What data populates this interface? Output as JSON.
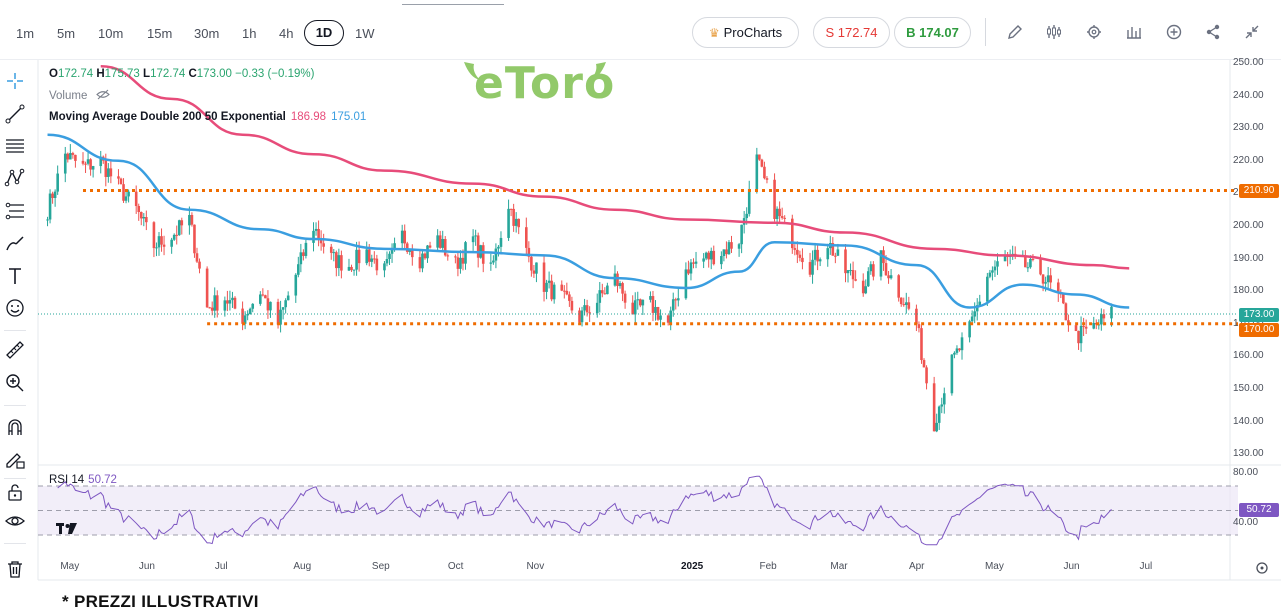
{
  "toolbar": {
    "timeframes": [
      "1m",
      "5m",
      "10m",
      "15m",
      "30m",
      "1h",
      "4h",
      "1D",
      "1W"
    ],
    "active_timeframe": "1D",
    "procharts_label": "ProCharts",
    "sell_label": "S 172.74",
    "buy_label": "B 174.07",
    "icons": [
      "draw-icon",
      "indicators-icon",
      "settings-icon",
      "chart-type-icon",
      "add-icon",
      "share-icon",
      "collapse-icon"
    ]
  },
  "left_tools": [
    "crosshair-icon",
    "trend-line-icon",
    "horizontal-lines-icon",
    "pattern-icon",
    "fib-icon",
    "brush-icon",
    "text-icon",
    "emoji-icon",
    "ruler-icon",
    "zoom-icon",
    "magnet-icon",
    "lock-draw-icon",
    "lock-icon",
    "eye-icon",
    "trash-icon"
  ],
  "legend": {
    "open_label": "O",
    "open": "172.74",
    "high_label": "H",
    "high": "175.73",
    "low_label": "L",
    "low": "172.74",
    "close_label": "C",
    "close": "173.00",
    "change": "−0.33 (−0.19%)",
    "volume_label": "Volume",
    "ma_label": "Moving Average Double 200 50 Exponential",
    "ma_value_1": "186.98",
    "ma_value_2": "175.01",
    "rsi_label": "RSI 14",
    "rsi_value": "50.72"
  },
  "watermark": "eToro",
  "colors": {
    "up": "#26a69a",
    "down": "#ef5350",
    "ma200": "#e74c7a",
    "ma50": "#3a9ee0",
    "level": "#ef6c00",
    "rsi": "#7e57c2",
    "price_badge": "#26a69a"
  },
  "chart_data": {
    "type": "candlestick",
    "y_axis_ticks": [
      "250.00",
      "240.00",
      "230.00",
      "220.00",
      "210.00",
      "200.00",
      "190.00",
      "180.00",
      "170.00",
      "160.00",
      "150.00",
      "140.00",
      "130.00"
    ],
    "ylim": [
      130,
      250
    ],
    "x_axis_ticks": [
      "May",
      "Jun",
      "Jul",
      "Aug",
      "Sep",
      "Oct",
      "Nov",
      "2025",
      "Feb",
      "Mar",
      "Apr",
      "May",
      "Jun",
      "Jul"
    ],
    "close_path": [
      {
        "x": "2024-04-22",
        "y": 205
      },
      {
        "x": "2024-04-29",
        "y": 222
      },
      {
        "x": "2024-05-06",
        "y": 218
      },
      {
        "x": "2024-05-13",
        "y": 220
      },
      {
        "x": "2024-05-20",
        "y": 212
      },
      {
        "x": "2024-05-27",
        "y": 205
      },
      {
        "x": "2024-06-03",
        "y": 194
      },
      {
        "x": "2024-06-10",
        "y": 197
      },
      {
        "x": "2024-06-17",
        "y": 202
      },
      {
        "x": "2024-06-24",
        "y": 175
      },
      {
        "x": "2024-07-01",
        "y": 178
      },
      {
        "x": "2024-07-08",
        "y": 172
      },
      {
        "x": "2024-07-15",
        "y": 180
      },
      {
        "x": "2024-07-22",
        "y": 170
      },
      {
        "x": "2024-07-29",
        "y": 185
      },
      {
        "x": "2024-08-05",
        "y": 200
      },
      {
        "x": "2024-08-12",
        "y": 190
      },
      {
        "x": "2024-08-19",
        "y": 188
      },
      {
        "x": "2024-08-26",
        "y": 192
      },
      {
        "x": "2024-09-02",
        "y": 186
      },
      {
        "x": "2024-09-09",
        "y": 197
      },
      {
        "x": "2024-09-16",
        "y": 190
      },
      {
        "x": "2024-09-23",
        "y": 196
      },
      {
        "x": "2024-09-30",
        "y": 188
      },
      {
        "x": "2024-10-07",
        "y": 196
      },
      {
        "x": "2024-10-14",
        "y": 186
      },
      {
        "x": "2024-10-21",
        "y": 207
      },
      {
        "x": "2024-10-28",
        "y": 192
      },
      {
        "x": "2024-11-04",
        "y": 182
      },
      {
        "x": "2024-11-11",
        "y": 178
      },
      {
        "x": "2024-11-18",
        "y": 172
      },
      {
        "x": "2024-11-25",
        "y": 177
      },
      {
        "x": "2024-12-02",
        "y": 184
      },
      {
        "x": "2024-12-09",
        "y": 174
      },
      {
        "x": "2024-12-16",
        "y": 176
      },
      {
        "x": "2024-12-23",
        "y": 170
      },
      {
        "x": "2024-12-30",
        "y": 187
      },
      {
        "x": "2025-01-06",
        "y": 190
      },
      {
        "x": "2025-01-13",
        "y": 192
      },
      {
        "x": "2025-01-20",
        "y": 196
      },
      {
        "x": "2025-01-27",
        "y": 220
      },
      {
        "x": "2025-02-03",
        "y": 205
      },
      {
        "x": "2025-02-10",
        "y": 196
      },
      {
        "x": "2025-02-17",
        "y": 188
      },
      {
        "x": "2025-02-24",
        "y": 195
      },
      {
        "x": "2025-03-03",
        "y": 186
      },
      {
        "x": "2025-03-10",
        "y": 182
      },
      {
        "x": "2025-03-17",
        "y": 190
      },
      {
        "x": "2025-03-24",
        "y": 180
      },
      {
        "x": "2025-03-31",
        "y": 170
      },
      {
        "x": "2025-04-07",
        "y": 140
      },
      {
        "x": "2025-04-14",
        "y": 158
      },
      {
        "x": "2025-04-21",
        "y": 168
      },
      {
        "x": "2025-04-28",
        "y": 185
      },
      {
        "x": "2025-05-05",
        "y": 190
      },
      {
        "x": "2025-05-12",
        "y": 188
      },
      {
        "x": "2025-05-19",
        "y": 186
      },
      {
        "x": "2025-05-26",
        "y": 178
      },
      {
        "x": "2025-06-02",
        "y": 166
      },
      {
        "x": "2025-06-09",
        "y": 169
      },
      {
        "x": "2025-06-16",
        "y": 173
      }
    ],
    "ema200": [
      {
        "x": "2024-05-13",
        "y": 249
      },
      {
        "x": "2024-06-10",
        "y": 239
      },
      {
        "x": "2024-07-08",
        "y": 228
      },
      {
        "x": "2024-08-05",
        "y": 222
      },
      {
        "x": "2024-09-02",
        "y": 217
      },
      {
        "x": "2024-10-07",
        "y": 213
      },
      {
        "x": "2024-11-04",
        "y": 209
      },
      {
        "x": "2024-12-02",
        "y": 205
      },
      {
        "x": "2024-12-30",
        "y": 202
      },
      {
        "x": "2025-02-03",
        "y": 201
      },
      {
        "x": "2025-03-03",
        "y": 198
      },
      {
        "x": "2025-04-07",
        "y": 193
      },
      {
        "x": "2025-05-05",
        "y": 191
      },
      {
        "x": "2025-06-09",
        "y": 188
      },
      {
        "x": "2025-06-23",
        "y": 187
      }
    ],
    "ema50": [
      {
        "x": "2024-04-22",
        "y": 228
      },
      {
        "x": "2024-05-20",
        "y": 220
      },
      {
        "x": "2024-06-17",
        "y": 205
      },
      {
        "x": "2024-07-15",
        "y": 199
      },
      {
        "x": "2024-08-05",
        "y": 196
      },
      {
        "x": "2024-09-02",
        "y": 193
      },
      {
        "x": "2024-10-07",
        "y": 192
      },
      {
        "x": "2024-11-04",
        "y": 191
      },
      {
        "x": "2024-12-02",
        "y": 184
      },
      {
        "x": "2024-12-30",
        "y": 181
      },
      {
        "x": "2025-01-20",
        "y": 186
      },
      {
        "x": "2025-02-03",
        "y": 195
      },
      {
        "x": "2025-03-03",
        "y": 194
      },
      {
        "x": "2025-03-31",
        "y": 188
      },
      {
        "x": "2025-04-21",
        "y": 175
      },
      {
        "x": "2025-05-12",
        "y": 182
      },
      {
        "x": "2025-06-02",
        "y": 179
      },
      {
        "x": "2025-06-23",
        "y": 175
      }
    ],
    "levels": [
      {
        "value": 210.9,
        "label": "210.90"
      },
      {
        "value": 170.0,
        "label": "170.00"
      }
    ],
    "current_price": {
      "value": 173.0,
      "label": "173.00"
    },
    "rsi": {
      "period": 14,
      "value": 50.72,
      "ylim": [
        20,
        80
      ],
      "bands": [
        30,
        50,
        70
      ],
      "axis_labels": [
        "80.00",
        "40.00"
      ],
      "badge_label": "50.72"
    }
  },
  "footer": "* PREZZI ILLUSTRATIVI"
}
